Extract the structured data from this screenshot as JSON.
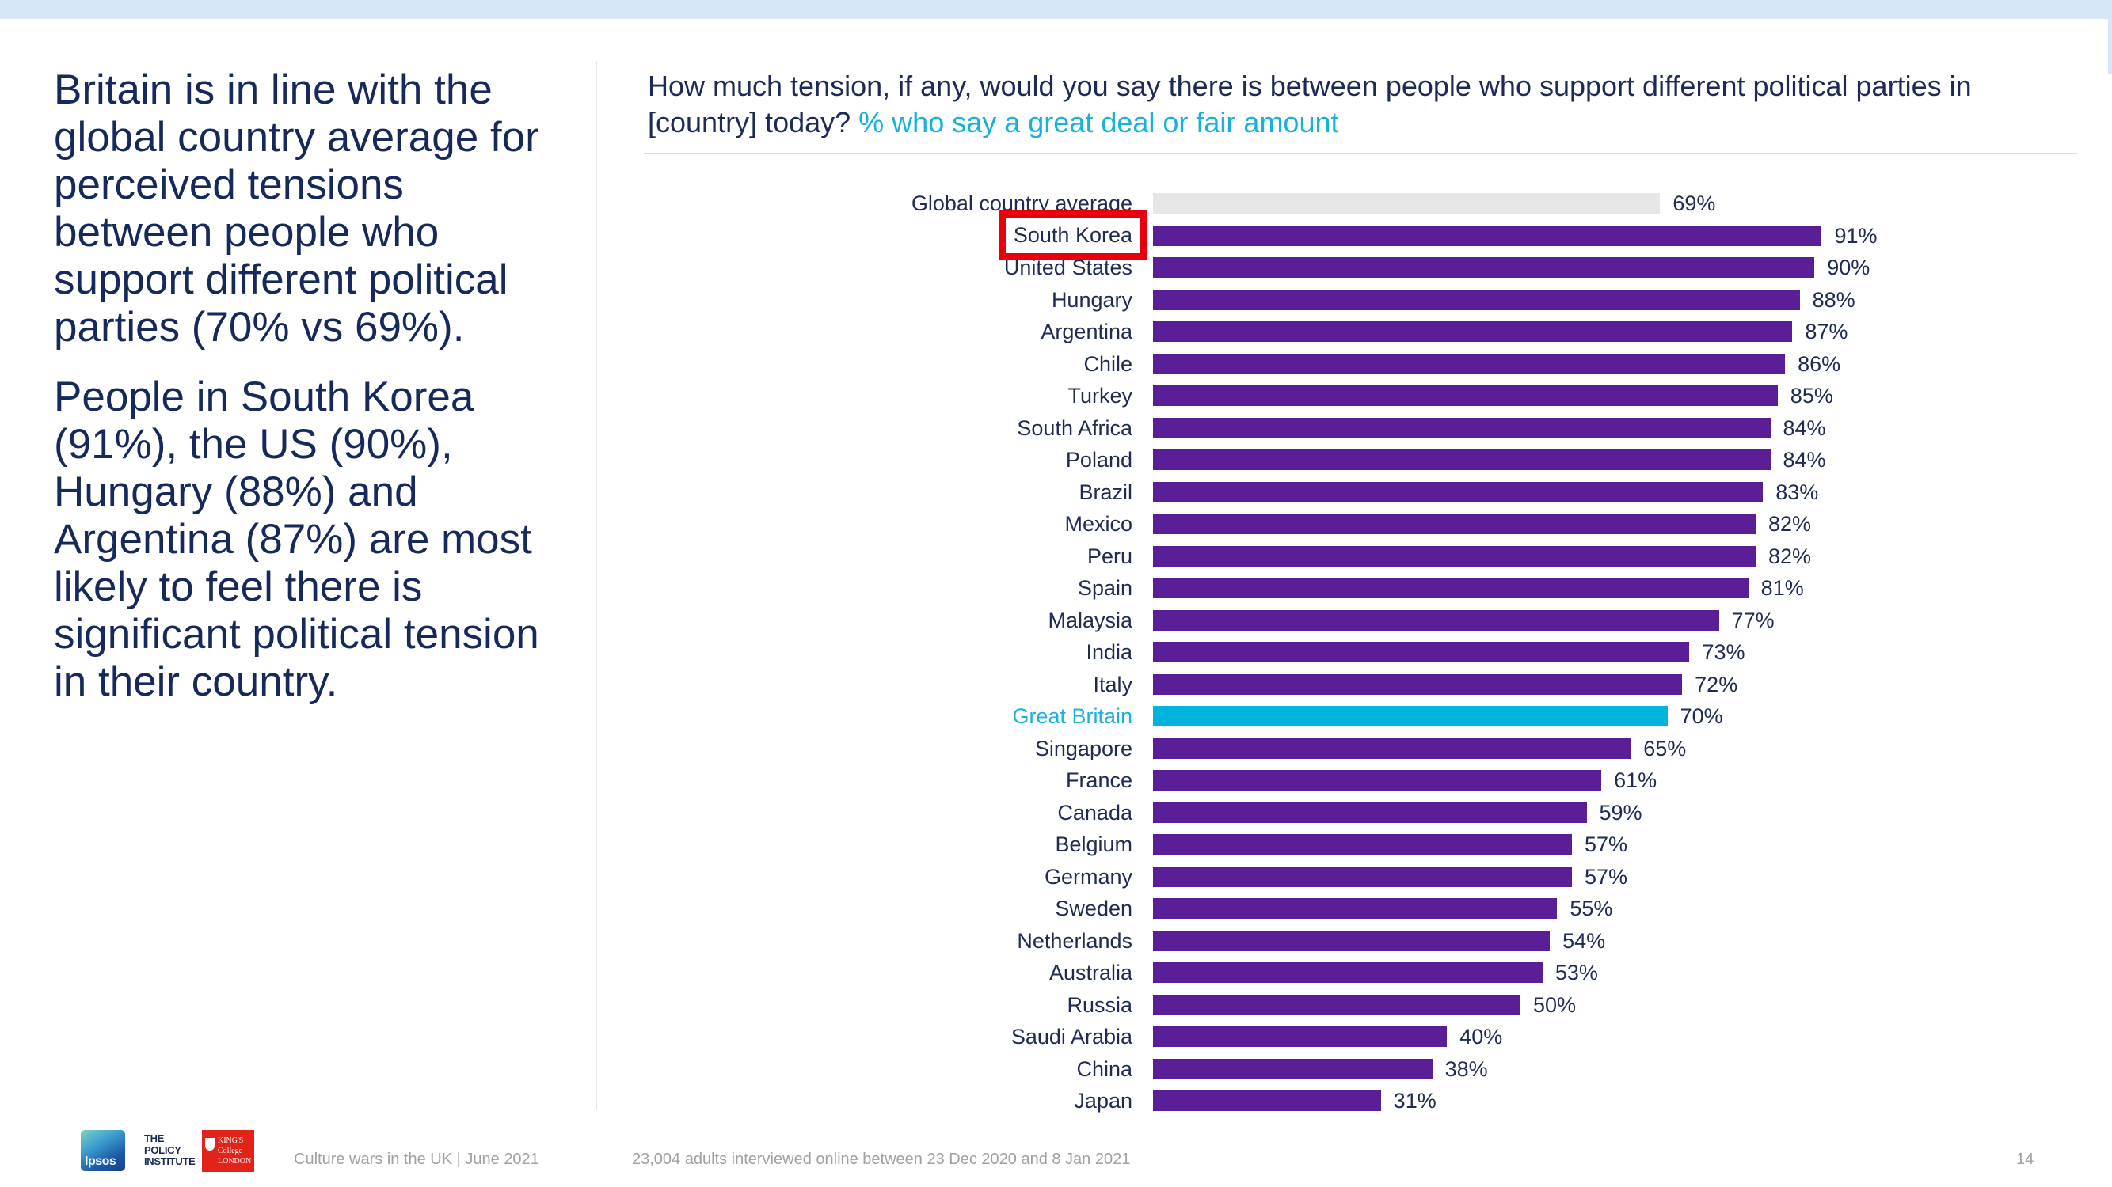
{
  "theme": {
    "top_bar": "#d7e7f8",
    "body_text": "#16295b",
    "muted_text": "#a0a0a0",
    "accent": "#17b2d9"
  },
  "summary": {
    "paragraph_1": [
      "Britain is in line with the",
      "global country average for",
      "perceived tensions",
      "between people who",
      "support different political",
      "parties (70% vs 69%)."
    ],
    "paragraph_2": [
      "People in South Korea",
      "(91%), the US (90%),",
      "Hungary (88%) and",
      "Argentina (87%) are most",
      "likely to feel there is",
      "significant political tension",
      "in their country."
    ]
  },
  "chart_data": {
    "type": "bar",
    "orientation": "horizontal",
    "title_lines": [
      "How much tension, if any, would you say there is between people who support different political parties in",
      "[country] today?"
    ],
    "subtitle": "% who say a great deal or fair amount",
    "categories": [
      "Global country average",
      "South Korea",
      "United States",
      "Hungary",
      "Argentina",
      "Chile",
      "Turkey",
      "South Africa",
      "Poland",
      "Brazil",
      "Mexico",
      "Peru",
      "Spain",
      "Malaysia",
      "India",
      "Italy",
      "Great Britain",
      "Singapore",
      "France",
      "Canada",
      "Belgium",
      "Germany",
      "Sweden",
      "Netherlands",
      "Australia",
      "Russia",
      "Saudi Arabia",
      "China",
      "Japan"
    ],
    "values": [
      69,
      91,
      90,
      88,
      87,
      86,
      85,
      84,
      84,
      83,
      82,
      82,
      81,
      77,
      73,
      72,
      70,
      65,
      61,
      59,
      57,
      57,
      55,
      54,
      53,
      50,
      40,
      38,
      31
    ],
    "data_labels": [
      "69%",
      "91%",
      "90%",
      "88%",
      "87%",
      "86%",
      "85%",
      "84%",
      "84%",
      "83%",
      "82%",
      "82%",
      "81%",
      "77%",
      "73%",
      "72%",
      "70%",
      "65%",
      "61%",
      "59%",
      "57%",
      "57%",
      "55%",
      "54%",
      "53%",
      "50%",
      "40%",
      "38%",
      "31%"
    ],
    "xlim": [
      0,
      100
    ],
    "grid": false,
    "average_index": 0,
    "highlight_index": 16,
    "annotated_index": 1,
    "colors": {
      "bar": "#5a1e97",
      "average_bar": "#e6e6e6",
      "highlight_bar": "#00b4dc",
      "highlight_label": "#1cb2d9",
      "annotation_box": "#e8000d"
    }
  },
  "footer": {
    "logos": {
      "ipsos": "Ipsos",
      "policy_institute": [
        "THE",
        "POLICY",
        "INSTITUTE"
      ],
      "kings": [
        "KING'S",
        "College",
        "LONDON"
      ]
    },
    "report": "Culture wars in the UK | June 2021",
    "methodology": "23,004 adults interviewed online between 23 Dec 2020 and 8 Jan 2021",
    "page_number": "14"
  }
}
